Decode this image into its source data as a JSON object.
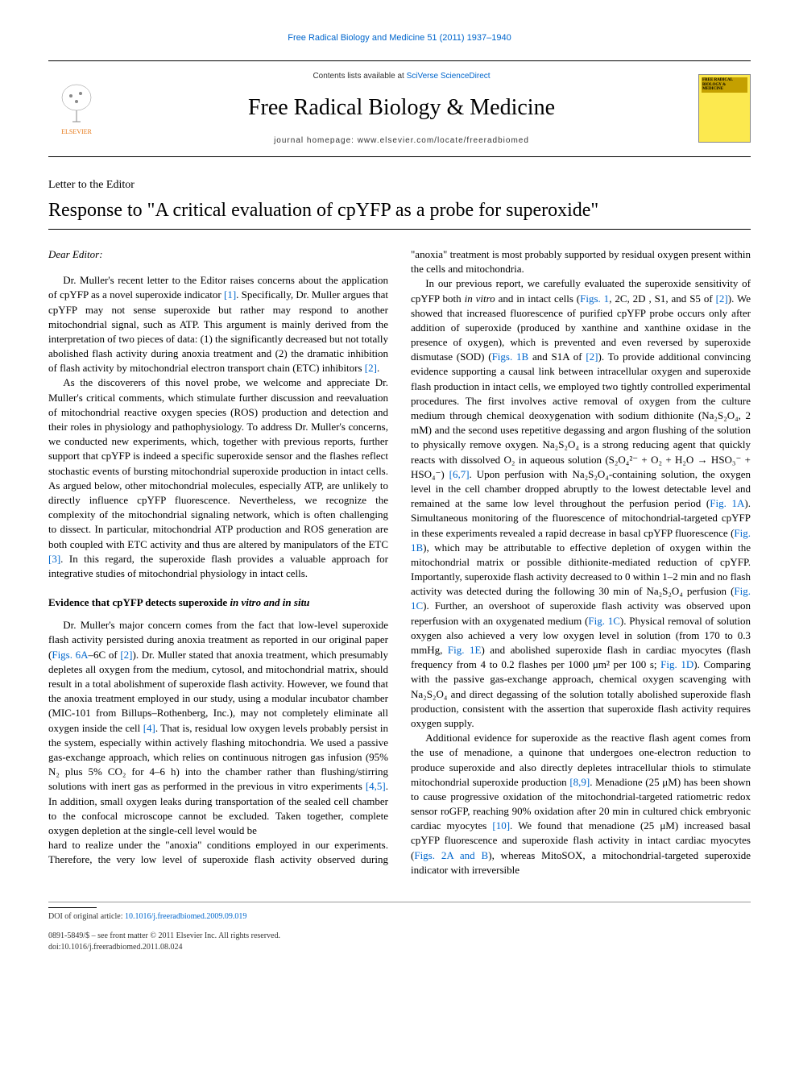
{
  "top_link": "Free Radical Biology and Medicine 51 (2011) 1937–1940",
  "header": {
    "elsevier_label": "ELSEVIER",
    "elsevier_color": "#e67817",
    "contents_prefix": "Contents lists available at ",
    "contents_link": "SciVerse ScienceDirect",
    "journal_name": "Free Radical Biology & Medicine",
    "homepage_label": "journal homepage: ",
    "homepage_url": "www.elsevier.com/locate/freeradbiomed",
    "cover_title": "FREE RADICAL BIOLOGY & MEDICINE",
    "cover_bg": "#fce94f",
    "cover_accent": "#c4a000"
  },
  "article": {
    "type": "Letter to the Editor",
    "title": "Response to \"A critical evaluation of cpYFP as a probe for superoxide\"",
    "salutation": "Dear Editor:",
    "p1": "Dr. Muller's recent letter to the Editor raises concerns about the application of cpYFP as a novel superoxide indicator [1]. Specifically, Dr. Muller argues that cpYFP may not sense superoxide but rather may respond to another mitochondrial signal, such as ATP. This argument is mainly derived from the interpretation of two pieces of data: (1) the significantly decreased but not totally abolished flash activity during anoxia treatment and (2) the dramatic inhibition of flash activity by mitochondrial electron transport chain (ETC) inhibitors [2].",
    "p2": "As the discoverers of this novel probe, we welcome and appreciate Dr. Muller's critical comments, which stimulate further discussion and reevaluation of mitochondrial reactive oxygen species (ROS) production and detection and their roles in physiology and pathophysiology. To address Dr. Muller's concerns, we conducted new experiments, which, together with previous reports, further support that cpYFP is indeed a specific superoxide sensor and the flashes reflect stochastic events of bursting mitochondrial superoxide production in intact cells. As argued below, other mitochondrial molecules, especially ATP, are unlikely to directly influence cpYFP fluorescence. Nevertheless, we recognize the complexity of the mitochondrial signaling network, which is often challenging to dissect. In particular, mitochondrial ATP production and ROS generation are both coupled with ETC activity and thus are altered by manipulators of the ETC [3]. In this regard, the superoxide flash provides a valuable approach for integrative studies of mitochondrial physiology in intact cells.",
    "section1_heading": "Evidence that cpYFP detects superoxide in vitro and in situ",
    "p3": "Dr. Muller's major concern comes from the fact that low-level superoxide flash activity persisted during anoxia treatment as reported in our original paper (Figs. 6A–6C of [2]). Dr. Muller stated that anoxia treatment, which presumably depletes all oxygen from the medium, cytosol, and mitochondrial matrix, should result in a total abolishment of superoxide flash activity. However, we found that the anoxia treatment employed in our study, using a modular incubator chamber (MIC-101 from Billups–Rothenberg, Inc.), may not completely eliminate all oxygen inside the cell [4]. That is, residual low oxygen levels probably persist in the system, especially within actively flashing mitochondria. We used a passive gas-exchange approach, which relies on continuous nitrogen gas infusion (95% N₂ plus 5% CO₂ for 4–6 h) into the chamber rather than flushing/stirring solutions with inert gas as performed in the previous in vitro experiments [4,5]. In addition, small oxygen leaks during transportation of the sealed cell chamber to the confocal microscope cannot be excluded. Taken together, complete oxygen depletion at the single-cell level would be",
    "p4": "hard to realize under the \"anoxia\" conditions employed in our experiments. Therefore, the very low level of superoxide flash activity observed during \"anoxia\" treatment is most probably supported by residual oxygen present within the cells and mitochondria.",
    "p5": "In our previous report, we carefully evaluated the superoxide sensitivity of cpYFP both in vitro and in intact cells (Figs. 1, 2C, 2D , S1, and S5 of [2]). We showed that increased fluorescence of purified cpYFP probe occurs only after addition of superoxide (produced by xanthine and xanthine oxidase in the presence of oxygen), which is prevented and even reversed by superoxide dismutase (SOD) (Figs. 1B and S1A of [2]). To provide additional convincing evidence supporting a causal link between intracellular oxygen and superoxide flash production in intact cells, we employed two tightly controlled experimental procedures. The first involves active removal of oxygen from the culture medium through chemical deoxygenation with sodium dithionite (Na₂S₂O₄, 2 mM) and the second uses repetitive degassing and argon flushing of the solution to physically remove oxygen. Na₂S₂O₄ is a strong reducing agent that quickly reacts with dissolved O₂ in aqueous solution (S₂O₄²⁻ + O₂ + H₂O → HSO₃⁻ + HSO₄⁻) [6,7]. Upon perfusion with Na₂S₂O₄-containing solution, the oxygen level in the cell chamber dropped abruptly to the lowest detectable level and remained at the same low level throughout the perfusion period (Fig. 1A). Simultaneous monitoring of the fluorescence of mitochondrial-targeted cpYFP in these experiments revealed a rapid decrease in basal cpYFP fluorescence (Fig. 1B), which may be attributable to effective depletion of oxygen within the mitochondrial matrix or possible dithionite-mediated reduction of cpYFP. Importantly, superoxide flash activity decreased to 0 within 1–2 min and no flash activity was detected during the following 30 min of Na₂S₂O₄ perfusion (Fig. 1C). Further, an overshoot of superoxide flash activity was observed upon reperfusion with an oxygenated medium (Fig. 1C). Physical removal of solution oxygen also achieved a very low oxygen level in solution (from 170 to 0.3 mmHg, Fig. 1E) and abolished superoxide flash in cardiac myocytes (flash frequency from 4 to 0.2 flashes per 1000 μm² per 100 s; Fig. 1D). Comparing with the passive gas-exchange approach, chemical oxygen scavenging with Na₂S₂O₄ and direct degassing of the solution totally abolished superoxide flash production, consistent with the assertion that superoxide flash activity requires oxygen supply.",
    "p6": "Additional evidence for superoxide as the reactive flash agent comes from the use of menadione, a quinone that undergoes one-electron reduction to produce superoxide and also directly depletes intracellular thiols to stimulate mitochondrial superoxide production [8,9]. Menadione (25 μM) has been shown to cause progressive oxidation of the mitochondrial-targeted ratiometric redox sensor roGFP, reaching 90% oxidation after 20 min in cultured chick embryonic cardiac myocytes [10]. We found that menadione (25 μM) increased basal cpYFP fluorescence and superoxide flash activity in intact cardiac myocytes (Figs. 2A and B), whereas MitoSOX, a mitochondrial-targeted superoxide indicator with irreversible"
  },
  "footer": {
    "doi_label": "DOI of original article: ",
    "doi_link": "10.1016/j.freeradbiomed.2009.09.019",
    "issn_line": "0891-5849/$ – see front matter © 2011 Elsevier Inc. All rights reserved.",
    "doi_line": "doi:10.1016/j.freeradbiomed.2011.08.024"
  },
  "link_color": "#0066cc"
}
